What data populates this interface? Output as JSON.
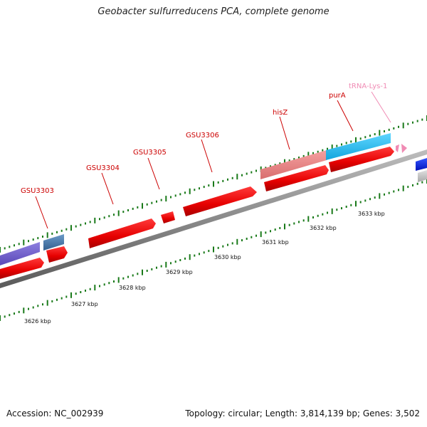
{
  "title": "Geobacter sulfurreducens PCA, complete genome",
  "footer": {
    "accession": "Accession: NC_002939",
    "summary": "Topology: circular; Length: 3,814,139 bp; Genes: 3,502"
  },
  "colors": {
    "backbone": "#8a8a8a",
    "cds_forward": "#ee0000",
    "gene_label": "#cc0000",
    "trna": "#f08bb4",
    "tick": "#1a7a1a",
    "blue_feature": "#22bbee",
    "salmon_feature": "#ee8888",
    "purple_feature": "#7766cc",
    "steelblue_feature": "#4477aa"
  },
  "gene_labels": [
    "GSU3303",
    "GSU3304",
    "GSU3305",
    "GSU3306",
    "hisZ",
    "purA",
    "tRNA-Lys-1"
  ],
  "kbp_labels": [
    "3626 kbp",
    "3627 kbp",
    "3628 kbp",
    "3629 kbp",
    "3630 kbp",
    "3631 kbp",
    "3632 kbp",
    "3633 kbp"
  ]
}
